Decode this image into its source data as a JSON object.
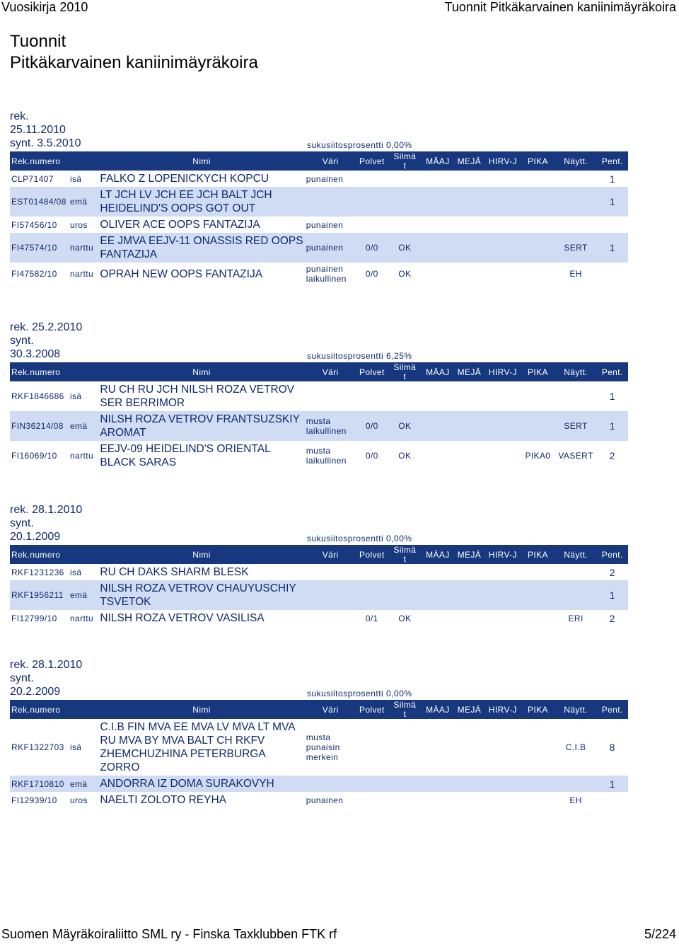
{
  "header": {
    "left": "Vuosikirja 2010",
    "right": "Tuonnit Pitkäkarvainen kaniinimäyräkoira"
  },
  "title": {
    "line1": "Tuonnit",
    "line2": "Pitkäkarvainen kaniinimäyräkoira"
  },
  "footer": {
    "left": "Suomen Mäyräkoiraliitto SML ry - Finska Taxklubben FTK rf",
    "right": "5/224"
  },
  "columns": {
    "rek": "Rek.numero",
    "nimi": "Nimi",
    "vari": "Väri",
    "polvet": "Polvet",
    "silma1": "Silmä",
    "silma2": "t",
    "maaj": "MÄAJ",
    "meja": "MEJÄ",
    "hirv": "HIRV-J",
    "pika": "PIKA",
    "nayt": "Näytt.",
    "pent": "Pent."
  },
  "sections": [
    {
      "rek": "rek.",
      "rek_date": "25.11.2010",
      "synt": "synt. 3.5.2010",
      "sukusiitos": "sukusiitosprosentti 0,00%",
      "rows": [
        {
          "rek": "CLP71407",
          "rel": "isä",
          "name": "FALKO Z LOPENICKYCH KOPCU",
          "vari": "punainen",
          "polvet": "",
          "silmat": "",
          "maaj": "",
          "meja": "",
          "hirv": "",
          "pika": "",
          "nayt": "",
          "pent": "1"
        },
        {
          "rek": "EST01484/08",
          "rel": "emä",
          "name": "LT JCH LV JCH EE JCH BALT JCH HEIDELIND'S OOPS GOT OUT",
          "vari": "",
          "polvet": "",
          "silmat": "",
          "maaj": "",
          "meja": "",
          "hirv": "",
          "pika": "",
          "nayt": "",
          "pent": "1"
        },
        {
          "rek": "FI57456/10",
          "rel": "uros",
          "name": "OLIVER ACE OOPS FANTAZIJA",
          "vari": "punainen",
          "polvet": "",
          "silmat": "",
          "maaj": "",
          "meja": "",
          "hirv": "",
          "pika": "",
          "nayt": "",
          "pent": ""
        },
        {
          "rek": "FI47574/10",
          "rel": "narttu",
          "name": "EE JMVA EEJV-11 ONASSIS RED OOPS FANTAZIJA",
          "vari": "punainen",
          "polvet": "0/0",
          "silmat": "OK",
          "maaj": "",
          "meja": "",
          "hirv": "",
          "pika": "",
          "nayt": "SERT",
          "pent": "1"
        },
        {
          "rek": "FI47582/10",
          "rel": "narttu",
          "name": "OPRAH NEW OOPS FANTAZIJA",
          "vari": "punainen laikullinen",
          "polvet": "0/0",
          "silmat": "OK",
          "maaj": "",
          "meja": "",
          "hirv": "",
          "pika": "",
          "nayt": "EH",
          "pent": ""
        }
      ]
    },
    {
      "rek": "rek. 25.2.2010",
      "rek_date": "synt.",
      "synt": "30.3.2008",
      "sukusiitos": "sukusiitosprosentti 6,25%",
      "rows": [
        {
          "rek": "RKF1846686",
          "rel": "isä",
          "name": "RU CH RU JCH NILSH ROZA VETROV SER BERRIMOR",
          "vari": "",
          "polvet": "",
          "silmat": "",
          "maaj": "",
          "meja": "",
          "hirv": "",
          "pika": "",
          "nayt": "",
          "pent": "1"
        },
        {
          "rek": "FIN36214/08",
          "rel": "emä",
          "name": "NILSH ROZA VETROV FRANTSUZSKIY AROMAT",
          "vari": "musta laikullinen",
          "polvet": "0/0",
          "silmat": "OK",
          "maaj": "",
          "meja": "",
          "hirv": "",
          "pika": "",
          "nayt": "SERT",
          "pent": "1"
        },
        {
          "rek": "FI16069/10",
          "rel": "narttu",
          "name": "EEJV-09 HEIDELIND'S ORIENTAL BLACK SARAS",
          "vari": "musta laikullinen",
          "polvet": "0/0",
          "silmat": "OK",
          "maaj": "",
          "meja": "",
          "hirv": "",
          "pika": "PIKA0",
          "nayt": "VASERT",
          "pent": "2"
        }
      ]
    },
    {
      "rek": "rek. 28.1.2010",
      "rek_date": "synt.",
      "synt": "20.1.2009",
      "sukusiitos": "sukusiitosprosentti 0,00%",
      "rows": [
        {
          "rek": "RKF1231236",
          "rel": "isä",
          "name": "RU CH DAKS SHARM BLESK",
          "vari": "",
          "polvet": "",
          "silmat": "",
          "maaj": "",
          "meja": "",
          "hirv": "",
          "pika": "",
          "nayt": "",
          "pent": "2"
        },
        {
          "rek": "RKF1956211",
          "rel": "emä",
          "name": "NILSH ROZA VETROV CHAUYUSCHIY TSVETOK",
          "vari": "",
          "polvet": "",
          "silmat": "",
          "maaj": "",
          "meja": "",
          "hirv": "",
          "pika": "",
          "nayt": "",
          "pent": "1"
        },
        {
          "rek": "FI12799/10",
          "rel": "narttu",
          "name": "NILSH ROZA VETROV VASILISA",
          "vari": "",
          "polvet": "0/1",
          "silmat": "OK",
          "maaj": "",
          "meja": "",
          "hirv": "",
          "pika": "",
          "nayt": "ERI",
          "pent": "2"
        }
      ]
    },
    {
      "rek": "rek. 28.1.2010",
      "rek_date": "synt.",
      "synt": "20.2.2009",
      "sukusiitos": "sukusiitosprosentti 0,00%",
      "rows": [
        {
          "rek": "RKF1322703",
          "rel": "isä",
          "name": "C.I.B FIN MVA EE MVA LV MVA LT MVA RU MVA BY MVA BALT CH RKFV ZHEMCHUZHINA PETERBURGA ZORRO",
          "vari": "musta punaisin merkein",
          "polvet": "",
          "silmat": "",
          "maaj": "",
          "meja": "",
          "hirv": "",
          "pika": "",
          "nayt": "C.I.B",
          "pent": "8"
        },
        {
          "rek": "RKF1710810",
          "rel": "emä",
          "name": "ANDORRA IZ DOMA SURAKOVYH",
          "vari": "",
          "polvet": "",
          "silmat": "",
          "maaj": "",
          "meja": "",
          "hirv": "",
          "pika": "",
          "nayt": "",
          "pent": "1"
        },
        {
          "rek": "FI12939/10",
          "rel": "uros",
          "name": "NAELTI ZOLOTO REYHA",
          "vari": "punainen",
          "polvet": "",
          "silmat": "",
          "maaj": "",
          "meja": "",
          "hirv": "",
          "pika": "",
          "nayt": "EH",
          "pent": ""
        }
      ]
    }
  ]
}
